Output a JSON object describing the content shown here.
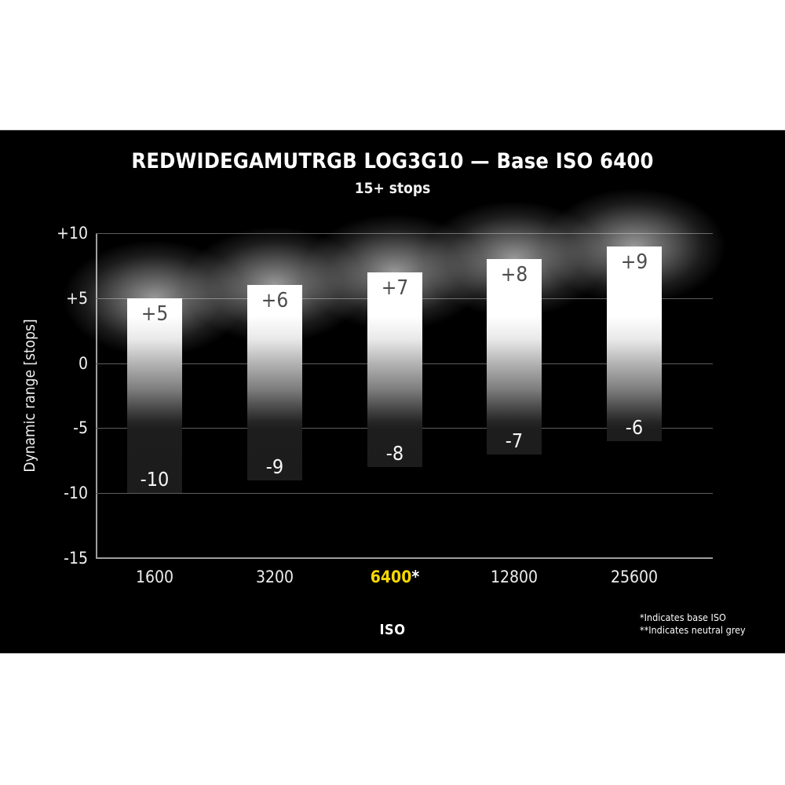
{
  "chart_data": {
    "type": "bar",
    "title": "REDWIDEGAMUTRGB LOG3G10 — Base ISO 6400",
    "subtitle": "15+ stops",
    "xlabel": "ISO",
    "ylabel": "Dynamic range [stops]",
    "ylim": [
      -15,
      10
    ],
    "grid": true,
    "legend_position": "none",
    "yticks": [
      {
        "value": 10,
        "label": "+10"
      },
      {
        "value": 5,
        "label": "+5"
      },
      {
        "value": 0,
        "label": "0"
      },
      {
        "value": -5,
        "label": "-5"
      },
      {
        "value": -10,
        "label": "-10"
      },
      {
        "value": -15,
        "label": "-15"
      }
    ],
    "bars": [
      {
        "category": "1600",
        "suffix": "",
        "highlight": false,
        "top": 5,
        "bottom": -10,
        "top_label": "+5",
        "bottom_label": "-10"
      },
      {
        "category": "3200",
        "suffix": "",
        "highlight": false,
        "top": 6,
        "bottom": -9,
        "top_label": "+6",
        "bottom_label": "-9"
      },
      {
        "category": "6400",
        "suffix": "*",
        "highlight": true,
        "top": 7,
        "bottom": -8,
        "top_label": "+7",
        "bottom_label": "-8"
      },
      {
        "category": "12800",
        "suffix": "",
        "highlight": false,
        "top": 8,
        "bottom": -7,
        "top_label": "+8",
        "bottom_label": "-7"
      },
      {
        "category": "25600",
        "suffix": "",
        "highlight": false,
        "top": 9,
        "bottom": -6,
        "top_label": "+9",
        "bottom_label": "-6"
      }
    ],
    "footnotes": [
      "*Indicates base ISO",
      "**Indicates neutral grey"
    ]
  },
  "colors": {
    "background": "#000000",
    "page": "#ffffff",
    "highlight_yellow": "#f6d800",
    "bar_white": "#ffffff",
    "bar_shadow_end": "#1b1b1b",
    "gridline": "#5d5d5d",
    "axis_spine": "#9e9e9e",
    "tick_text": "#f0f0f0",
    "bar_top_label": "#4d4d4d",
    "bar_bottom_label": "#f5f5f5"
  }
}
